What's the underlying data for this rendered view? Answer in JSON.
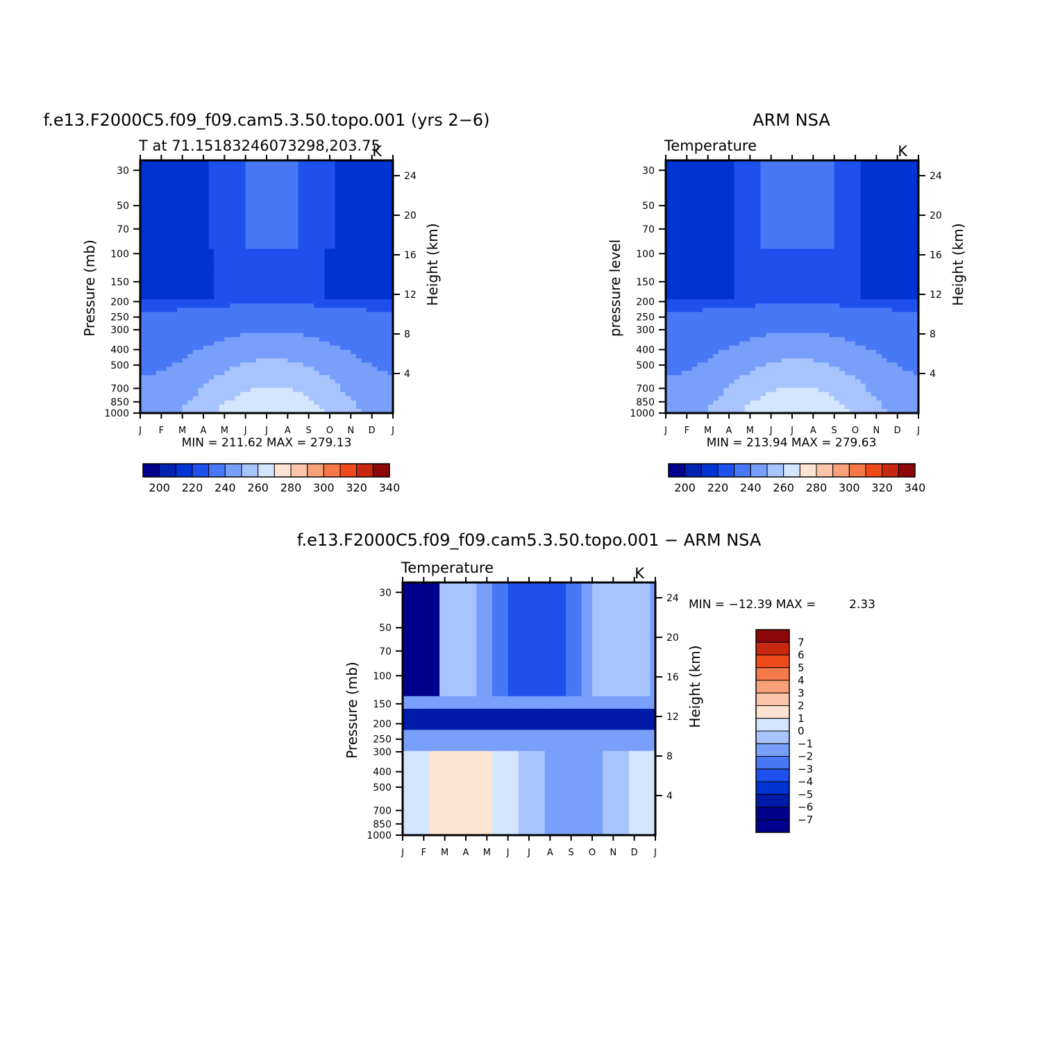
{
  "chart_data": [
    {
      "type": "contour",
      "title": "f.e13.F2000C5.f09_f09.cam5.3.50.topo.001 (yrs 2−6)",
      "left_string": "T at 71.15183246073298,203.75",
      "right_string": "K",
      "ylabel": "Pressure (mb)",
      "y2label": "Height (km)",
      "x_ticks": [
        "J",
        "F",
        "M",
        "A",
        "M",
        "J",
        "J",
        "A",
        "S",
        "O",
        "N",
        "D",
        "J"
      ],
      "pressure_ticks": [
        "30",
        "50",
        "70",
        "100",
        "150",
        "200",
        "250",
        "300",
        "400",
        "500",
        "700",
        "850",
        "1000"
      ],
      "height_ticks": [
        "24",
        "20",
        "16",
        "12",
        "8",
        "4"
      ],
      "min_max": "MIN = 211.62 MAX = 279.13",
      "colorbar_labels": [
        "200",
        "220",
        "240",
        "260",
        "280",
        "300",
        "320",
        "340"
      ],
      "approx_values_K": {
        "stratosphere_winter": 212,
        "stratosphere_summer": 225,
        "surface_winter": 255,
        "surface_july": 279
      }
    },
    {
      "type": "contour",
      "title": "ARM NSA",
      "left_string": "Temperature",
      "right_string": "K",
      "ylabel": "pressure level",
      "y2label": "Height (km)",
      "x_ticks": [
        "J",
        "F",
        "M",
        "A",
        "M",
        "J",
        "J",
        "A",
        "S",
        "O",
        "N",
        "D",
        "J"
      ],
      "pressure_ticks": [
        "30",
        "50",
        "70",
        "100",
        "150",
        "200",
        "250",
        "300",
        "400",
        "500",
        "700",
        "850",
        "1000"
      ],
      "height_ticks": [
        "24",
        "20",
        "16",
        "12",
        "8",
        "4"
      ],
      "min_max": "MIN = 213.94 MAX = 279.63",
      "colorbar_labels": [
        "200",
        "220",
        "240",
        "260",
        "280",
        "300",
        "320",
        "340"
      ],
      "approx_values_K": {
        "stratosphere_winter": 214,
        "stratosphere_summer": 225,
        "surface_winter": 255,
        "surface_july": 280
      }
    },
    {
      "type": "contour",
      "title": "f.e13.F2000C5.f09_f09.cam5.3.50.topo.001 − ARM NSA",
      "left_string": "Temperature",
      "right_string": "K",
      "ylabel": "Pressure (mb)",
      "y2label": "Height (km)",
      "x_ticks": [
        "J",
        "F",
        "M",
        "A",
        "M",
        "J",
        "J",
        "A",
        "S",
        "O",
        "N",
        "D",
        "J"
      ],
      "pressure_ticks": [
        "30",
        "50",
        "70",
        "100",
        "150",
        "200",
        "250",
        "300",
        "400",
        "500",
        "700",
        "850",
        "1000"
      ],
      "height_ticks": [
        "24",
        "20",
        "16",
        "12",
        "8",
        "4"
      ],
      "min_max_label": "MIN = −12.39 MAX =",
      "min_max_value": "2.33",
      "colorbar_labels": [
        "7",
        "6",
        "5",
        "4",
        "3",
        "2",
        "1",
        "0",
        "−1",
        "−2",
        "−3",
        "−4",
        "−5",
        "−6",
        "−7"
      ],
      "approx_values_K": {
        "min": -12.39,
        "max": 2.33,
        "tropopause_bias": -6,
        "lower_troposphere_bias": 0
      }
    }
  ],
  "palettes": {
    "temperature": [
      "#00008c",
      "#0022b0",
      "#0033d4",
      "#1e50ee",
      "#4878f6",
      "#78a0fa",
      "#a8c4fd",
      "#d4e6fe",
      "#fde4d2",
      "#fcc4a8",
      "#f8a078",
      "#f47848",
      "#ee4a1a",
      "#c82810",
      "#8c0808"
    ],
    "difference": [
      "#00008c",
      "#001aaa",
      "#0033d4",
      "#1e50ee",
      "#4878f6",
      "#78a0fa",
      "#a8c4fd",
      "#d4e6fe",
      "#fde4d2",
      "#fcc4a8",
      "#f8a078",
      "#f47848",
      "#ee4a1a",
      "#c82810",
      "#8c0808"
    ]
  }
}
